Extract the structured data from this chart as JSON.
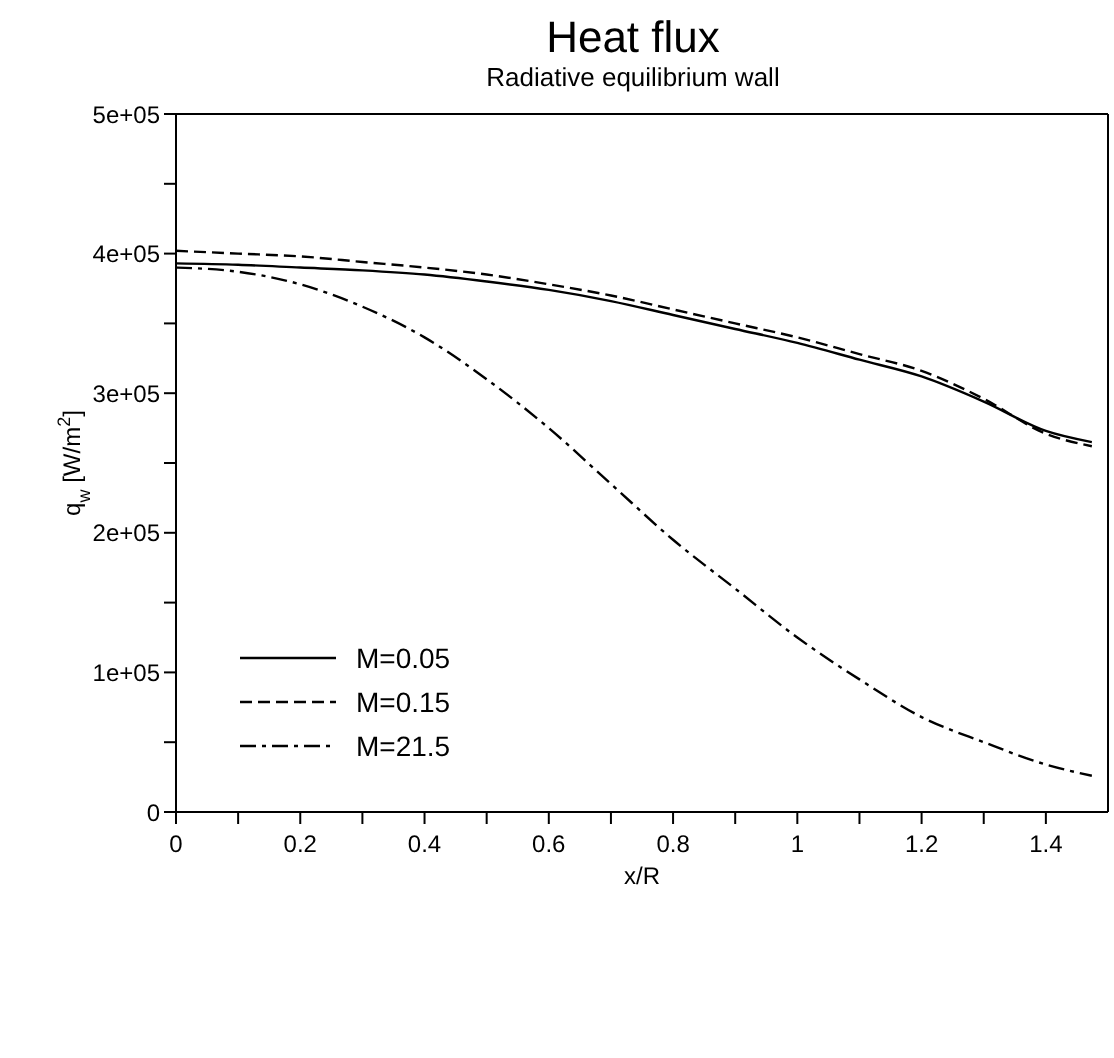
{
  "chart_data": {
    "type": "line",
    "title": "Heat flux",
    "subtitle": "Radiative equilibrium wall",
    "xlabel": "x/R",
    "ylabel": "q$_{w}$ [W/m$^{2}$]",
    "xlim": [
      0,
      1.5
    ],
    "xticks": [
      0,
      {
        "value": 0.1,
        "label": null
      },
      0.2,
      {
        "value": 0.3,
        "label": null
      },
      0.4,
      {
        "value": 0.5,
        "label": null
      },
      0.6,
      {
        "value": 0.7,
        "label": null
      },
      0.8,
      {
        "value": 0.9,
        "label": null
      },
      1,
      {
        "value": 1.1,
        "label": null
      },
      1.2,
      {
        "value": 1.3,
        "label": null
      },
      1.4
    ],
    "ylim": [
      0,
      500000
    ],
    "yticks": [
      {
        "value": 0,
        "label": "0"
      },
      {
        "value": 50000,
        "label": null
      },
      {
        "value": 100000,
        "label": "1e+05"
      },
      {
        "value": 150000,
        "label": null
      },
      {
        "value": 200000,
        "label": "2e+05"
      },
      {
        "value": 250000,
        "label": null
      },
      {
        "value": 300000,
        "label": "3e+05"
      },
      {
        "value": 350000,
        "label": null
      },
      {
        "value": 400000,
        "label": "4e+05"
      },
      {
        "value": 450000,
        "label": null
      },
      {
        "value": 500000,
        "label": "5e+05"
      }
    ],
    "legend": "left",
    "marker": "none",
    "x": [
      0,
      0.1,
      0.2,
      0.3,
      0.4,
      0.5,
      0.6,
      0.7,
      0.8,
      0.9,
      1,
      1.1,
      1.2,
      1.3,
      1.4,
      1.474
    ],
    "series": [
      {
        "name": "M=0.05",
        "color": "#000000",
        "line_style": "solid",
        "values": [
          393000,
          392000,
          390000,
          388000,
          385000,
          380000,
          374000,
          366000,
          356000,
          346000,
          336000,
          324000,
          312000,
          294000,
          273000,
          265000
        ]
      },
      {
        "name": "M=0.15",
        "color": "#000000",
        "line_style": "dashed",
        "values": [
          402000,
          400000,
          398000,
          394000,
          390000,
          385000,
          378000,
          370000,
          360000,
          350000,
          340000,
          328000,
          316000,
          296000,
          271000,
          262000
        ]
      },
      {
        "name": "M=21.5",
        "color": "#000000",
        "line_style": "dashdot",
        "values": [
          390000,
          387000,
          378000,
          362000,
          340000,
          310000,
          275000,
          235000,
          195000,
          160000,
          125000,
          95000,
          68000,
          50000,
          34000,
          26000
        ]
      }
    ]
  }
}
